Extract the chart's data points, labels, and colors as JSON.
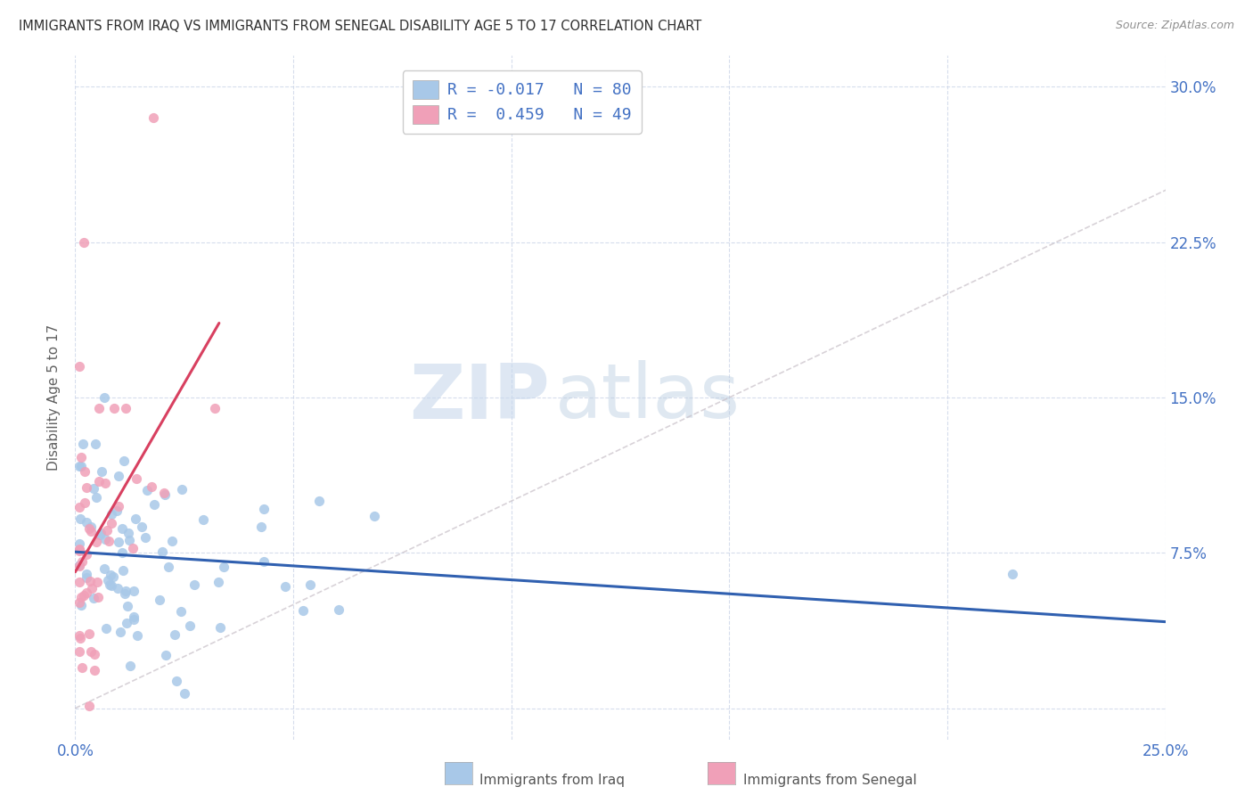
{
  "title": "IMMIGRANTS FROM IRAQ VS IMMIGRANTS FROM SENEGAL DISABILITY AGE 5 TO 17 CORRELATION CHART",
  "source": "Source: ZipAtlas.com",
  "ylabel": "Disability Age 5 to 17",
  "xlim": [
    0.0,
    0.25
  ],
  "ylim": [
    -0.015,
    0.315
  ],
  "iraq_R": -0.017,
  "iraq_N": 80,
  "senegal_R": 0.459,
  "senegal_N": 49,
  "iraq_color": "#a8c8e8",
  "senegal_color": "#f0a0b8",
  "iraq_line_color": "#3060b0",
  "senegal_line_color": "#d84060",
  "diag_line_color": "#c8c0c8",
  "watermark_zip": "ZIP",
  "watermark_atlas": "atlas",
  "background_color": "#ffffff",
  "legend_label_iraq": "Immigrants from Iraq",
  "legend_label_senegal": "Immigrants from Senegal",
  "title_color": "#303030",
  "source_color": "#909090",
  "axis_label_color": "#4472c4",
  "ylabel_color": "#606060"
}
